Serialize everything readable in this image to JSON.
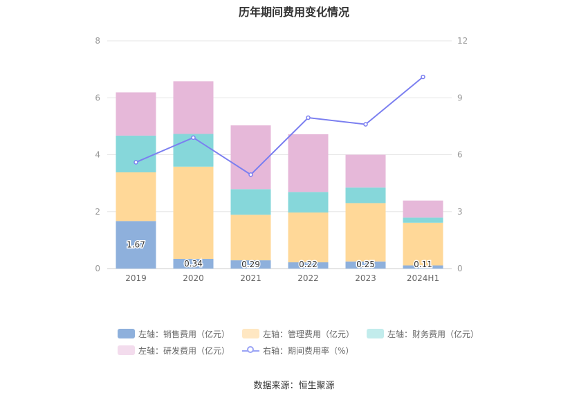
{
  "chart_data": {
    "type": "bar",
    "title": "历年期间费用变化情况",
    "categories": [
      "2019",
      "2020",
      "2021",
      "2022",
      "2023",
      "2024H1"
    ],
    "left_axis": {
      "ylim": [
        0,
        8
      ],
      "ticks": [
        "0",
        "2",
        "4",
        "6",
        "8"
      ]
    },
    "right_axis": {
      "ylim": [
        0,
        12
      ],
      "ticks": [
        "0",
        "3",
        "6",
        "9",
        "12"
      ]
    },
    "series": [
      {
        "name": "左轴：销售费用（亿元）",
        "type": "bar",
        "stack": true,
        "color": "#8eb0dc",
        "values": [
          1.67,
          0.34,
          0.29,
          0.22,
          0.25,
          0.11
        ],
        "labels": [
          "1.67",
          "0.34",
          "0.29",
          "0.22",
          "0.25",
          "0.11"
        ]
      },
      {
        "name": "左轴：管理费用（亿元）",
        "type": "bar",
        "stack": true,
        "color": "#ffd898",
        "values": [
          1.71,
          3.24,
          1.6,
          1.75,
          2.05,
          1.5
        ]
      },
      {
        "name": "左轴：财务费用（亿元）",
        "type": "bar",
        "stack": true,
        "color": "#86d7da",
        "values": [
          1.29,
          1.15,
          0.9,
          0.72,
          0.55,
          0.18
        ]
      },
      {
        "name": "左轴：研发费用（亿元）",
        "type": "bar",
        "stack": true,
        "color": "#e6b8d9",
        "values": [
          1.52,
          1.85,
          2.24,
          2.03,
          1.15,
          0.6
        ]
      },
      {
        "name": "右轴：期间费用率（%）",
        "type": "line",
        "axis": "right",
        "color": "#7b7ff0",
        "values": [
          5.6,
          6.9,
          4.95,
          7.95,
          7.6,
          10.1
        ]
      }
    ],
    "legend_position": "bottom",
    "grid": true
  },
  "source_text": "数据来源：恒生聚源"
}
